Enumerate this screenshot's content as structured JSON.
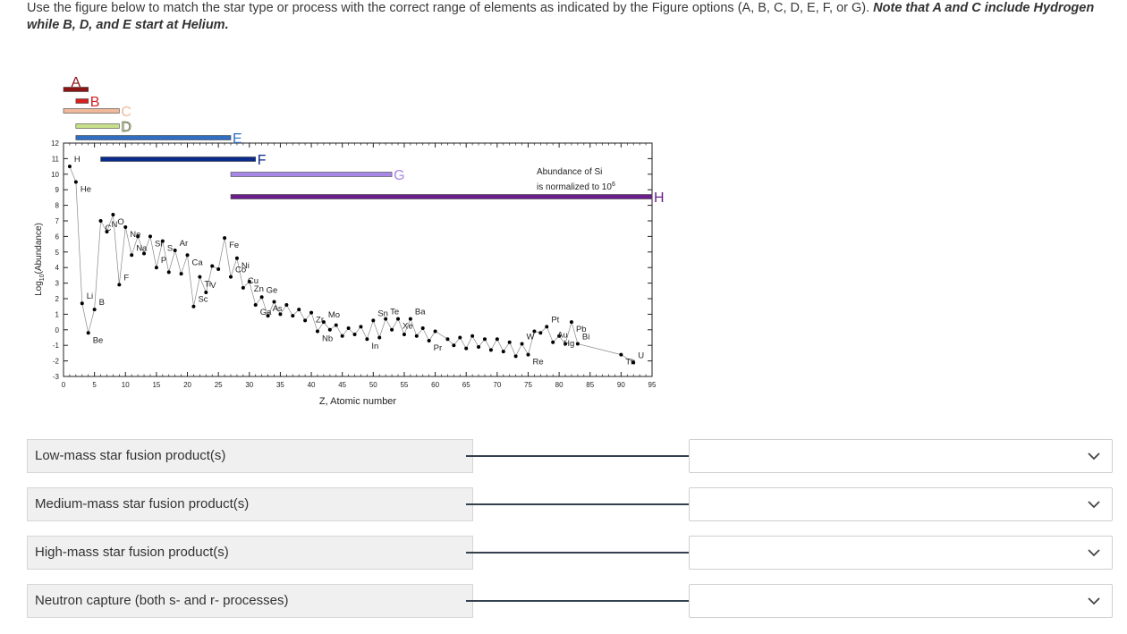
{
  "instructions": {
    "text": "Use the figure below to match the star type or process with the correct range of elements as indicated by the Figure options (A, B, C, D, E, F, or G). ",
    "note": "Note that A and C include Hydrogen while B, D, and E start at Helium."
  },
  "chart_data": {
    "type": "scatter",
    "title": "",
    "xlabel": "Z, Atomic number",
    "ylabel": "Log10(Abundance)",
    "xlim": [
      0,
      95
    ],
    "ylim": [
      -3,
      12
    ],
    "xticks": [
      0,
      5,
      10,
      15,
      20,
      25,
      30,
      35,
      40,
      45,
      50,
      55,
      60,
      65,
      70,
      75,
      80,
      85,
      90,
      95
    ],
    "yticks": [
      -3,
      -2,
      -1,
      0,
      1,
      2,
      3,
      4,
      5,
      6,
      7,
      8,
      9,
      10,
      11,
      12
    ],
    "annotation": [
      "Abundance of Si",
      "is normalized to 10"
    ],
    "annotation_exp": "6",
    "series": [
      {
        "values": [
          [
            1,
            10.5
          ],
          [
            2,
            9.5
          ],
          [
            3,
            1.7
          ],
          [
            4,
            -0.2
          ],
          [
            5,
            1.3
          ],
          [
            6,
            7.0
          ],
          [
            7,
            6.3
          ],
          [
            8,
            7.4
          ],
          [
            9,
            2.9
          ],
          [
            10,
            6.6
          ],
          [
            11,
            4.8
          ],
          [
            12,
            6.0
          ],
          [
            13,
            4.9
          ],
          [
            14,
            6.0
          ],
          [
            15,
            4.0
          ],
          [
            16,
            5.7
          ],
          [
            17,
            3.7
          ],
          [
            18,
            5.1
          ],
          [
            19,
            3.6
          ],
          [
            20,
            4.8
          ],
          [
            21,
            1.5
          ],
          [
            22,
            3.4
          ],
          [
            23,
            2.4
          ],
          [
            24,
            4.1
          ],
          [
            25,
            3.9
          ],
          [
            26,
            5.9
          ],
          [
            27,
            3.4
          ],
          [
            28,
            4.6
          ],
          [
            29,
            2.7
          ],
          [
            30,
            3.1
          ],
          [
            31,
            1.6
          ],
          [
            32,
            2.1
          ],
          [
            33,
            0.9
          ],
          [
            34,
            1.8
          ],
          [
            35,
            1.0
          ],
          [
            36,
            1.6
          ],
          [
            37,
            0.9
          ],
          [
            38,
            1.3
          ],
          [
            39,
            0.6
          ],
          [
            40,
            1.1
          ],
          [
            41,
            -0.1
          ],
          [
            42,
            0.5
          ],
          [
            43,
            0.0
          ],
          [
            44,
            0.3
          ],
          [
            45,
            -0.4
          ],
          [
            46,
            0.1
          ],
          [
            47,
            -0.3
          ],
          [
            48,
            0.2
          ],
          [
            49,
            -0.6
          ],
          [
            50,
            0.6
          ],
          [
            51,
            -0.5
          ],
          [
            52,
            0.7
          ],
          [
            53,
            0.0
          ],
          [
            54,
            0.7
          ],
          [
            55,
            -0.3
          ],
          [
            56,
            0.7
          ],
          [
            57,
            -0.4
          ],
          [
            58,
            0.1
          ],
          [
            59,
            -0.7
          ],
          [
            60,
            -0.1
          ],
          [
            62,
            -0.6
          ],
          [
            63,
            -1.0
          ],
          [
            64,
            -0.5
          ],
          [
            65,
            -1.2
          ],
          [
            66,
            -0.4
          ],
          [
            67,
            -1.1
          ],
          [
            68,
            -0.6
          ],
          [
            69,
            -1.3
          ],
          [
            70,
            -0.6
          ],
          [
            71,
            -1.4
          ],
          [
            72,
            -0.8
          ],
          [
            73,
            -1.7
          ],
          [
            74,
            -0.9
          ],
          [
            75,
            -1.6
          ],
          [
            76,
            -0.1
          ],
          [
            77,
            -0.2
          ],
          [
            78,
            0.2
          ],
          [
            79,
            -0.8
          ],
          [
            80,
            -0.4
          ],
          [
            81,
            -0.9
          ],
          [
            82,
            0.5
          ],
          [
            83,
            -0.9
          ],
          [
            90,
            -1.6
          ],
          [
            92,
            -2.1
          ]
        ]
      }
    ],
    "element_labels": [
      {
        "text": "H",
        "x": 1,
        "y": 10.5
      },
      {
        "text": "He",
        "x": 2,
        "y": 9.5
      },
      {
        "text": "Li",
        "x": 3,
        "y": 1.7
      },
      {
        "text": "Be",
        "x": 4,
        "y": -0.2
      },
      {
        "text": "B",
        "x": 5,
        "y": 1.3
      },
      {
        "text": "C",
        "x": 6,
        "y": 7.0
      },
      {
        "text": "N",
        "x": 7,
        "y": 6.3
      },
      {
        "text": "O",
        "x": 8,
        "y": 7.4
      },
      {
        "text": "F",
        "x": 9,
        "y": 2.9
      },
      {
        "text": "Ne",
        "x": 10,
        "y": 6.6
      },
      {
        "text": "Na",
        "x": 11,
        "y": 4.8
      },
      {
        "text": "Si",
        "x": 14,
        "y": 6.0
      },
      {
        "text": "P",
        "x": 15,
        "y": 4.0
      },
      {
        "text": "S",
        "x": 16,
        "y": 5.7
      },
      {
        "text": "Ar",
        "x": 18,
        "y": 5.1
      },
      {
        "text": "Ca",
        "x": 20,
        "y": 4.8
      },
      {
        "text": "Sc",
        "x": 21,
        "y": 1.5
      },
      {
        "text": "Ti",
        "x": 22,
        "y": 3.4
      },
      {
        "text": "V",
        "x": 23,
        "y": 2.4
      },
      {
        "text": "Fe",
        "x": 26,
        "y": 5.9
      },
      {
        "text": "Co",
        "x": 27,
        "y": 3.4
      },
      {
        "text": "Ni",
        "x": 28,
        "y": 4.6
      },
      {
        "text": "Cu",
        "x": 29,
        "y": 2.7
      },
      {
        "text": "Zn",
        "x": 30,
        "y": 3.1
      },
      {
        "text": "Ge",
        "x": 32,
        "y": 2.1
      },
      {
        "text": "Ga",
        "x": 31,
        "y": 1.6
      },
      {
        "text": "As",
        "x": 33,
        "y": 0.9
      },
      {
        "text": "Zr",
        "x": 40,
        "y": 1.1
      },
      {
        "text": "Mo",
        "x": 42,
        "y": 0.5
      },
      {
        "text": "Nb",
        "x": 41,
        "y": -0.1
      },
      {
        "text": "Sn",
        "x": 50,
        "y": 0.6
      },
      {
        "text": "In",
        "x": 49,
        "y": -0.6
      },
      {
        "text": "Te",
        "x": 52,
        "y": 0.7
      },
      {
        "text": "Xe",
        "x": 54,
        "y": 0.7
      },
      {
        "text": "Ba",
        "x": 56,
        "y": 0.7
      },
      {
        "text": "Pr",
        "x": 59,
        "y": -0.7
      },
      {
        "text": "W",
        "x": 74,
        "y": -0.9
      },
      {
        "text": "Re",
        "x": 75,
        "y": -1.6
      },
      {
        "text": "Pt",
        "x": 78,
        "y": 0.2
      },
      {
        "text": "Hg",
        "x": 80,
        "y": -0.4
      },
      {
        "text": "Au",
        "x": 79,
        "y": -0.8
      },
      {
        "text": "Pb",
        "x": 82,
        "y": 0.5
      },
      {
        "text": "Bi",
        "x": 83,
        "y": -0.9
      },
      {
        "text": "Th",
        "x": 90,
        "y": -1.6
      },
      {
        "text": "U",
        "x": 92,
        "y": -2.1
      }
    ],
    "range_bars": [
      {
        "label": "A",
        "from": 0,
        "to": 4,
        "color": "#8b1414"
      },
      {
        "label": "B",
        "from": 2,
        "to": 4,
        "color": "#d61f1f"
      },
      {
        "label": "C",
        "from": 0,
        "to": 9,
        "color": "#f0b89a"
      },
      {
        "label": "D",
        "from": 2,
        "to": 9,
        "color": "#c8e08c"
      },
      {
        "label": "E",
        "from": 2,
        "to": 27,
        "color": "#2f6ec0"
      },
      {
        "label": "F",
        "from": 6,
        "to": 31,
        "color": "#0a2a8c"
      },
      {
        "label": "G",
        "from": 27,
        "to": 53,
        "color": "#a887e6"
      },
      {
        "label": "H",
        "from": 27,
        "to": 95,
        "color": "#6a1f8a"
      }
    ]
  },
  "matches": [
    {
      "prompt": "Low-mass star fusion product(s)",
      "value": ""
    },
    {
      "prompt": "Medium-mass star fusion product(s)",
      "value": ""
    },
    {
      "prompt": "High-mass star fusion product(s)",
      "value": ""
    },
    {
      "prompt": "Neutron capture (both s- and r- processes)",
      "value": ""
    }
  ],
  "icons": {
    "dropdown": "chevron-down-icon"
  }
}
